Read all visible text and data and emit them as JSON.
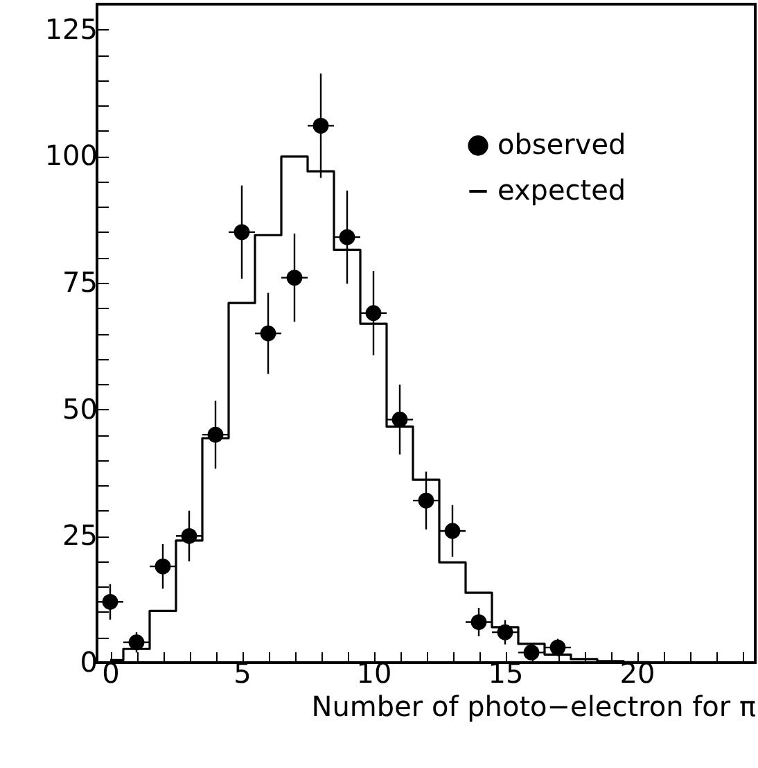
{
  "chart_data": {
    "type": "scatter",
    "xlabel": "Number of photo−electron for π",
    "legend": "top right",
    "grid": false,
    "xlim": [
      -0.5,
      24.5
    ],
    "ylim": [
      0,
      130
    ],
    "xticks": [
      0,
      {
        "value": 1,
        "label": null
      },
      {
        "value": 2,
        "label": null
      },
      {
        "value": 3,
        "label": null
      },
      {
        "value": 4,
        "label": null
      },
      5,
      {
        "value": 6,
        "label": null
      },
      {
        "value": 7,
        "label": null
      },
      {
        "value": 8,
        "label": null
      },
      {
        "value": 9,
        "label": null
      },
      10,
      {
        "value": 11,
        "label": null
      },
      {
        "value": 12,
        "label": null
      },
      {
        "value": 13,
        "label": null
      },
      {
        "value": 14,
        "label": null
      },
      15,
      {
        "value": 16,
        "label": null
      },
      {
        "value": 17,
        "label": null
      },
      {
        "value": 18,
        "label": null
      },
      {
        "value": 19,
        "label": null
      },
      20,
      {
        "value": 21,
        "label": null
      },
      {
        "value": 22,
        "label": null
      },
      {
        "value": 23,
        "label": null
      },
      {
        "value": 24,
        "label": null
      }
    ],
    "yticks": [
      0,
      {
        "value": 5,
        "label": null
      },
      {
        "value": 10,
        "label": null
      },
      {
        "value": 15,
        "label": null
      },
      {
        "value": 20,
        "label": null
      },
      25,
      {
        "value": 30,
        "label": null
      },
      {
        "value": 35,
        "label": null
      },
      {
        "value": 40,
        "label": null
      },
      {
        "value": 45,
        "label": null
      },
      50,
      {
        "value": 55,
        "label": null
      },
      {
        "value": 60,
        "label": null
      },
      {
        "value": 65,
        "label": null
      },
      {
        "value": 70,
        "label": null
      },
      75,
      {
        "value": 80,
        "label": null
      },
      {
        "value": 85,
        "label": null
      },
      {
        "value": 90,
        "label": null
      },
      {
        "value": 95,
        "label": null
      },
      100,
      {
        "value": 105,
        "label": null
      },
      {
        "value": 110,
        "label": null
      },
      {
        "value": 115,
        "label": null
      },
      {
        "value": 120,
        "label": null
      },
      125
    ],
    "series": [
      {
        "name": "observed",
        "marker": "circle",
        "color": "#000000",
        "x": [
          0,
          1,
          2,
          3,
          4,
          5,
          6,
          7,
          8,
          9,
          10,
          11,
          12,
          13,
          14,
          15,
          16,
          17
        ],
        "values": [
          12,
          4,
          19,
          25,
          45,
          85,
          65,
          76,
          106,
          84,
          69,
          48,
          32,
          26,
          8,
          6,
          2,
          3
        ],
        "errors": [
          3.5,
          2,
          4.4,
          5,
          6.7,
          9.2,
          8,
          8.7,
          10.3,
          9.2,
          8.3,
          6.9,
          5.7,
          5.1,
          2.8,
          2.4,
          1.4,
          1.7
        ],
        "xerrors": [
          0.5,
          0.5,
          0.5,
          0.5,
          0.5,
          0.5,
          0.5,
          0.5,
          0.5,
          0.5,
          0.5,
          0.5,
          0.5,
          0.5,
          0.5,
          0.5,
          0.5,
          0.5
        ]
      },
      {
        "name": "expected",
        "type": "step",
        "line_style": "solid",
        "color": "#000000",
        "x": [
          0,
          1,
          2,
          3,
          4,
          5,
          6,
          7,
          8,
          9,
          10,
          11,
          12,
          13,
          14,
          15,
          16,
          17,
          18,
          19,
          20,
          21,
          22,
          23,
          24
        ],
        "values": [
          0.5,
          2.7,
          10.2,
          24.1,
          44.3,
          71,
          84.4,
          99.9,
          97,
          81.5,
          66.9,
          46.6,
          36.1,
          19.8,
          13.8,
          7,
          3.7,
          1.6,
          0.7,
          0.3,
          0.1,
          0,
          0,
          0,
          0
        ]
      }
    ]
  }
}
